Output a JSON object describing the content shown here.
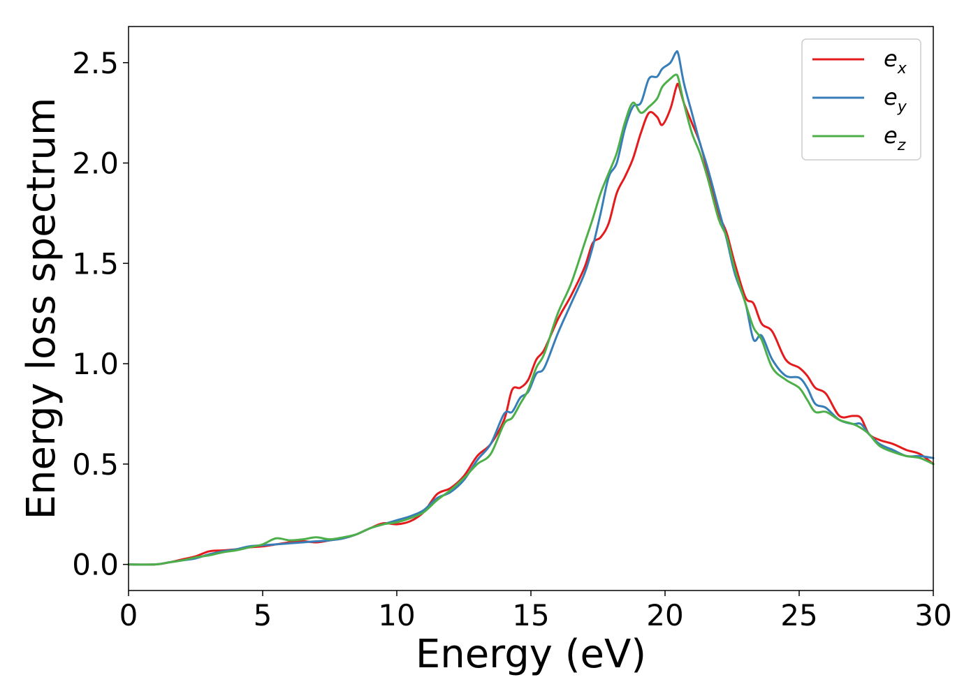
{
  "chart_data": {
    "type": "line",
    "xlabel": "Energy (eV)",
    "ylabel": "Energy loss spectrum",
    "xlim": [
      0,
      30
    ],
    "ylim": [
      -0.13,
      2.68
    ],
    "xticks": [
      0,
      5,
      10,
      15,
      20,
      25,
      30
    ],
    "xtick_labels": [
      "0",
      "5",
      "10",
      "15",
      "20",
      "25",
      "30"
    ],
    "yticks": [
      0.0,
      0.5,
      1.0,
      1.5,
      2.0,
      2.5
    ],
    "ytick_labels": [
      "0.0",
      "0.5",
      "1.0",
      "1.5",
      "2.0",
      "2.5"
    ],
    "grid": false,
    "legend_position": "top-right",
    "colors": {
      "e_x": "#e41a1c",
      "e_y": "#377eb8",
      "e_z": "#4daf4a"
    },
    "series": [
      {
        "name": "e_x",
        "label_main": "e",
        "label_sub": "x",
        "color": "#e41a1c",
        "x": [
          0,
          1,
          1.5,
          2,
          2.5,
          3,
          3.5,
          4,
          4.5,
          5,
          5.5,
          6,
          6.5,
          7,
          7.5,
          8,
          8.5,
          9,
          9.5,
          10,
          10.5,
          11,
          11.5,
          12,
          12.5,
          13,
          13.5,
          14,
          14.3,
          14.6,
          14.9,
          15.2,
          15.5,
          16,
          16.5,
          17,
          17.3,
          17.6,
          17.9,
          18.2,
          18.5,
          18.8,
          19.1,
          19.4,
          19.7,
          19.9,
          20.2,
          20.4,
          20.5,
          20.7,
          21,
          21.3,
          21.6,
          22,
          22.3,
          22.6,
          23,
          23.3,
          23.6,
          24,
          24.5,
          25,
          25.3,
          25.6,
          26,
          26.5,
          27,
          27.3,
          27.6,
          28,
          28.5,
          29,
          29.5,
          30
        ],
        "y": [
          0.0,
          0.0,
          0.01,
          0.025,
          0.04,
          0.065,
          0.07,
          0.075,
          0.085,
          0.09,
          0.1,
          0.11,
          0.115,
          0.11,
          0.12,
          0.13,
          0.15,
          0.18,
          0.205,
          0.2,
          0.215,
          0.26,
          0.35,
          0.38,
          0.44,
          0.54,
          0.6,
          0.72,
          0.87,
          0.88,
          0.92,
          1.02,
          1.07,
          1.22,
          1.34,
          1.48,
          1.6,
          1.63,
          1.7,
          1.85,
          1.93,
          2.02,
          2.15,
          2.25,
          2.23,
          2.19,
          2.27,
          2.37,
          2.39,
          2.3,
          2.2,
          2.1,
          1.95,
          1.75,
          1.65,
          1.5,
          1.33,
          1.3,
          1.2,
          1.16,
          1.02,
          0.98,
          0.94,
          0.88,
          0.85,
          0.74,
          0.74,
          0.73,
          0.65,
          0.62,
          0.6,
          0.57,
          0.55,
          0.5
        ]
      },
      {
        "name": "e_y",
        "label_main": "e",
        "label_sub": "y",
        "color": "#377eb8",
        "x": [
          0,
          1,
          1.5,
          2,
          2.5,
          3,
          3.5,
          4,
          4.5,
          5,
          5.5,
          6,
          6.5,
          7,
          7.5,
          8,
          8.5,
          9,
          9.5,
          10,
          10.5,
          11,
          11.5,
          12,
          12.5,
          13,
          13.5,
          14,
          14.3,
          14.6,
          14.9,
          15.2,
          15.5,
          16,
          16.5,
          17,
          17.3,
          17.6,
          17.9,
          18.2,
          18.5,
          18.8,
          19.1,
          19.4,
          19.7,
          19.9,
          20.2,
          20.4,
          20.5,
          20.7,
          21,
          21.3,
          21.6,
          22,
          22.3,
          22.6,
          23,
          23.3,
          23.6,
          24,
          24.5,
          25,
          25.3,
          25.6,
          26,
          26.5,
          27,
          27.3,
          27.6,
          28,
          28.5,
          29,
          29.5,
          30
        ],
        "y": [
          0.0,
          0.0,
          0.01,
          0.02,
          0.03,
          0.05,
          0.065,
          0.075,
          0.09,
          0.095,
          0.1,
          0.105,
          0.11,
          0.115,
          0.12,
          0.13,
          0.15,
          0.18,
          0.2,
          0.22,
          0.24,
          0.27,
          0.33,
          0.36,
          0.42,
          0.52,
          0.6,
          0.75,
          0.76,
          0.83,
          0.86,
          0.95,
          0.98,
          1.15,
          1.3,
          1.45,
          1.58,
          1.75,
          1.93,
          2.0,
          2.17,
          2.28,
          2.3,
          2.42,
          2.43,
          2.47,
          2.5,
          2.55,
          2.54,
          2.4,
          2.25,
          2.1,
          1.97,
          1.77,
          1.62,
          1.45,
          1.3,
          1.12,
          1.14,
          1.02,
          0.94,
          0.93,
          0.88,
          0.8,
          0.78,
          0.72,
          0.7,
          0.7,
          0.65,
          0.6,
          0.57,
          0.54,
          0.54,
          0.53
        ]
      },
      {
        "name": "e_z",
        "label_main": "e",
        "label_sub": "z",
        "color": "#4daf4a",
        "x": [
          0,
          1,
          1.5,
          2,
          2.5,
          3,
          3.5,
          4,
          4.5,
          5,
          5.5,
          6,
          6.5,
          7,
          7.5,
          8,
          8.5,
          9,
          9.5,
          10,
          10.5,
          11,
          11.5,
          12,
          12.5,
          13,
          13.5,
          14,
          14.3,
          14.6,
          14.9,
          15.2,
          15.5,
          16,
          16.5,
          17,
          17.3,
          17.6,
          17.9,
          18.2,
          18.5,
          18.8,
          19.1,
          19.4,
          19.7,
          19.9,
          20.2,
          20.4,
          20.5,
          20.7,
          21,
          21.3,
          21.6,
          22,
          22.3,
          22.6,
          23,
          23.3,
          23.6,
          24,
          24.5,
          25,
          25.3,
          25.6,
          26,
          26.5,
          27,
          27.3,
          27.6,
          28,
          28.5,
          29,
          29.5,
          30
        ],
        "y": [
          0.0,
          0.0,
          0.01,
          0.02,
          0.035,
          0.045,
          0.06,
          0.07,
          0.085,
          0.1,
          0.13,
          0.12,
          0.125,
          0.135,
          0.125,
          0.135,
          0.15,
          0.18,
          0.2,
          0.21,
          0.23,
          0.26,
          0.32,
          0.37,
          0.43,
          0.5,
          0.55,
          0.7,
          0.73,
          0.8,
          0.87,
          0.98,
          1.05,
          1.25,
          1.4,
          1.6,
          1.72,
          1.85,
          1.95,
          2.05,
          2.2,
          2.3,
          2.25,
          2.28,
          2.32,
          2.38,
          2.42,
          2.44,
          2.42,
          2.3,
          2.15,
          2.05,
          1.92,
          1.72,
          1.63,
          1.47,
          1.3,
          1.18,
          1.12,
          0.98,
          0.92,
          0.88,
          0.82,
          0.76,
          0.76,
          0.72,
          0.7,
          0.68,
          0.65,
          0.59,
          0.56,
          0.54,
          0.53,
          0.5
        ]
      }
    ]
  }
}
